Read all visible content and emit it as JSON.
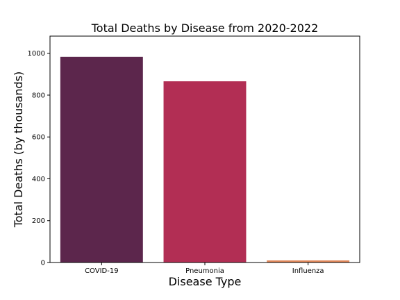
{
  "chart_data": {
    "type": "bar",
    "title": "Total Deaths by Disease from 2020-2022",
    "xlabel": "Disease Type",
    "ylabel": "Total Deaths (by thousands)",
    "categories": [
      "COVID-19",
      "Pneumonia",
      "Influenza"
    ],
    "values": [
      983,
      866,
      10
    ],
    "colors": [
      "#5c264c",
      "#b22e54",
      "#e0875a"
    ],
    "ylim": [
      0,
      1082
    ],
    "yticks": [
      0,
      200,
      400,
      600,
      800,
      1000
    ],
    "grid": false,
    "legend": "none"
  }
}
